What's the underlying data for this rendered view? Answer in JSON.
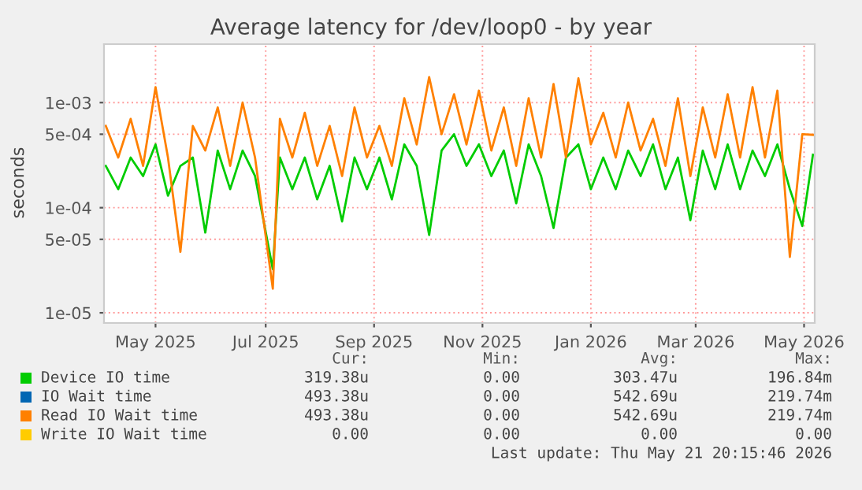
{
  "chart_data": {
    "type": "line",
    "title": "Average latency for /dev/loop0 - by year",
    "ylabel": "seconds",
    "log": "y",
    "grid": true,
    "legend": "bottom",
    "marker": "none",
    "line_style": "solid",
    "x": [
      "2025-04-18",
      "2025-04-25",
      "2025-05-02",
      "2025-05-09",
      "2025-05-16",
      "2025-05-23",
      "2025-05-30",
      "2025-06-06",
      "2025-06-13",
      "2025-06-20",
      "2025-06-27",
      "2025-07-04",
      "2025-07-11",
      "2025-07-21",
      "2025-07-25",
      "2025-08-01",
      "2025-08-08",
      "2025-08-15",
      "2025-08-22",
      "2025-08-29",
      "2025-09-05",
      "2025-09-12",
      "2025-09-19",
      "2025-09-26",
      "2025-10-03",
      "2025-10-10",
      "2025-10-17",
      "2025-10-24",
      "2025-10-31",
      "2025-11-07",
      "2025-11-14",
      "2025-11-21",
      "2025-11-28",
      "2025-12-05",
      "2025-12-12",
      "2025-12-19",
      "2025-12-26",
      "2026-01-02",
      "2026-01-09",
      "2026-01-16",
      "2026-01-23",
      "2026-01-30",
      "2026-02-06",
      "2026-02-13",
      "2026-02-20",
      "2026-02-27",
      "2026-03-06",
      "2026-03-13",
      "2026-03-20",
      "2026-03-27",
      "2026-04-03",
      "2026-04-10",
      "2026-04-17",
      "2026-04-24",
      "2026-05-01",
      "2026-05-08",
      "2026-05-15",
      "2026-05-21"
    ],
    "xlim": [
      "2025-04-17",
      "2026-05-22"
    ],
    "xticks": [
      {
        "value": "2025-05-16",
        "label": "May 2025"
      },
      {
        "value": "2025-07-17",
        "label": "Jul 2025"
      },
      {
        "value": "2025-09-16",
        "label": "Sep 2025"
      },
      {
        "value": "2025-11-16",
        "label": "Nov 2025"
      },
      {
        "value": "2026-01-16",
        "label": "Jan 2026"
      },
      {
        "value": "2026-03-16",
        "label": "Mar 2026"
      },
      {
        "value": "2026-05-16",
        "label": "May 2026"
      }
    ],
    "ylim": [
      8e-06,
      0.0036
    ],
    "yticks": [
      {
        "value": 1e-05,
        "label": "1e-05"
      },
      {
        "value": 5e-05,
        "label": "5e-05"
      },
      {
        "value": 0.0001,
        "label": "1e-04"
      },
      {
        "value": 0.0005,
        "label": "5e-04"
      },
      {
        "value": 0.001,
        "label": "1e-03"
      }
    ],
    "series": [
      {
        "name": "Device IO time",
        "color": "#00cc00",
        "values": [
          0.00025,
          0.00015,
          0.0003,
          0.0002,
          0.0004,
          0.00013,
          0.00025,
          0.0003,
          5.8e-05,
          0.00035,
          0.00015,
          0.00035,
          0.0002,
          2.6e-05,
          0.0003,
          0.00015,
          0.0003,
          0.00012,
          0.00025,
          7.4e-05,
          0.0003,
          0.00015,
          0.0003,
          0.00012,
          0.0004,
          0.00025,
          5.5e-05,
          0.00035,
          0.0005,
          0.00025,
          0.0004,
          0.0002,
          0.00035,
          0.00011,
          0.0004,
          0.0002,
          6.4e-05,
          0.0003,
          0.0004,
          0.00015,
          0.0003,
          0.00015,
          0.00035,
          0.0002,
          0.0004,
          0.00015,
          0.0003,
          7.6e-05,
          0.00035,
          0.00015,
          0.0004,
          0.00015,
          0.00035,
          0.0002,
          0.0004,
          0.00015,
          6.7e-05,
          0.000319
        ]
      },
      {
        "name": "IO Wait time",
        "color": "#0066b3",
        "values": [
          null,
          null,
          null,
          null,
          null,
          null,
          null,
          null,
          null,
          null,
          null,
          null,
          null,
          null,
          null,
          null,
          null,
          null,
          null,
          null,
          null,
          null,
          null,
          null,
          null,
          null,
          null,
          null,
          null,
          null,
          null,
          null,
          null,
          null,
          null,
          null,
          null,
          null,
          null,
          null,
          null,
          null,
          null,
          null,
          null,
          null,
          null,
          null,
          null,
          null,
          null,
          null,
          null,
          null,
          null,
          null,
          null,
          null
        ]
      },
      {
        "name": "Read IO Wait time",
        "color": "#ff8000",
        "values": [
          0.0006,
          0.0003,
          0.0007,
          0.00025,
          0.0014,
          0.0003,
          3.8e-05,
          0.0006,
          0.00035,
          0.0009,
          0.00025,
          0.001,
          0.0003,
          1.7e-05,
          0.0007,
          0.0003,
          0.0008,
          0.00025,
          0.0006,
          0.0002,
          0.0009,
          0.0003,
          0.0006,
          0.00025,
          0.0011,
          0.0004,
          0.00175,
          0.0005,
          0.0012,
          0.0004,
          0.0013,
          0.00035,
          0.0009,
          0.00025,
          0.0011,
          0.0003,
          0.0015,
          0.0003,
          0.0017,
          0.0004,
          0.0008,
          0.0003,
          0.001,
          0.00035,
          0.0007,
          0.00025,
          0.0011,
          0.0002,
          0.0009,
          0.0003,
          0.0012,
          0.0003,
          0.0014,
          0.0003,
          0.0013,
          3.4e-05,
          0.0005,
          0.00049338
        ]
      },
      {
        "name": "Write IO Wait time",
        "color": "#ffcc00",
        "values": [
          null,
          null,
          null,
          null,
          null,
          null,
          null,
          null,
          null,
          null,
          null,
          null,
          null,
          null,
          null,
          null,
          null,
          null,
          null,
          null,
          null,
          null,
          null,
          null,
          null,
          null,
          null,
          null,
          null,
          null,
          null,
          null,
          null,
          null,
          null,
          null,
          null,
          null,
          null,
          null,
          null,
          null,
          null,
          null,
          null,
          null,
          null,
          null,
          null,
          null,
          null,
          null,
          null,
          null,
          null,
          null,
          null,
          null
        ]
      }
    ],
    "annotations": [
      "Cur:",
      "Min:",
      "Avg:",
      "Max:",
      "319.38u",
      "0.00",
      "303.47u",
      "196.84m",
      "493.38u",
      "0.00",
      "542.69u",
      "219.74m",
      "493.38u",
      "0.00",
      "542.69u",
      "219.74m",
      "0.00",
      "0.00",
      "0.00",
      "0.00",
      "Last update: Thu May 21 20:15:46 2026"
    ]
  }
}
